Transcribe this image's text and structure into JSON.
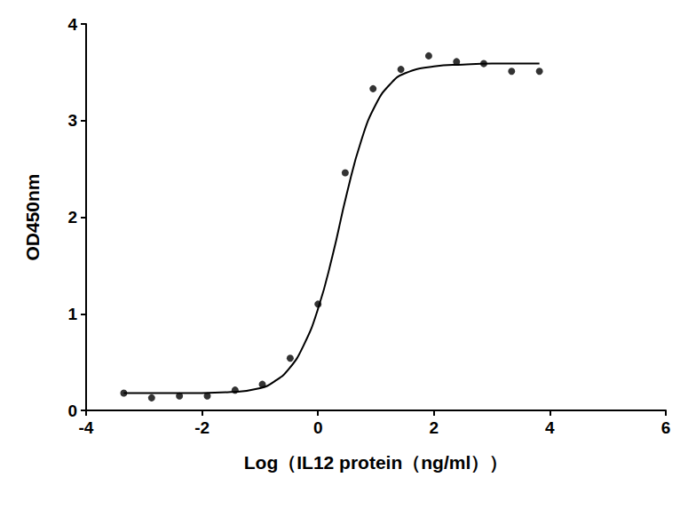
{
  "chart_data": {
    "type": "scatter",
    "x_label": "Log（IL12 protein（ng/ml））",
    "y_label": "OD450nm",
    "xlim": [
      -4,
      6
    ],
    "xticks": [
      -4,
      -2,
      0,
      2,
      4,
      6
    ],
    "ylim": [
      0,
      4
    ],
    "yticks": [
      0,
      1,
      2,
      3,
      4
    ],
    "grid": false,
    "series": [
      {
        "type": "scatter",
        "color": "#000000",
        "marker": "circle",
        "x": [
          -3.35,
          -2.87,
          -2.39,
          -1.91,
          -1.43,
          -0.96,
          -0.48,
          0.0,
          0.47,
          0.95,
          1.43,
          1.91,
          2.39,
          2.86,
          3.34,
          3.82
        ],
        "values": [
          0.18,
          0.13,
          0.15,
          0.15,
          0.21,
          0.27,
          0.54,
          1.1,
          2.46,
          3.33,
          3.53,
          3.67,
          3.61,
          3.59,
          3.51,
          3.51
        ]
      },
      {
        "type": "line",
        "color": "#000000",
        "line_style": "solid",
        "x": [
          -3.35,
          -2.5,
          -2.0,
          -1.5,
          -1.0,
          -0.75,
          -0.5,
          -0.25,
          0.0,
          0.25,
          0.5,
          0.75,
          1.0,
          1.25,
          1.5,
          2.0,
          2.5,
          3.0,
          3.82
        ],
        "values": [
          0.18,
          0.18,
          0.18,
          0.19,
          0.23,
          0.3,
          0.43,
          0.67,
          1.05,
          1.6,
          2.25,
          2.8,
          3.17,
          3.38,
          3.49,
          3.56,
          3.58,
          3.59,
          3.59
        ]
      }
    ]
  }
}
